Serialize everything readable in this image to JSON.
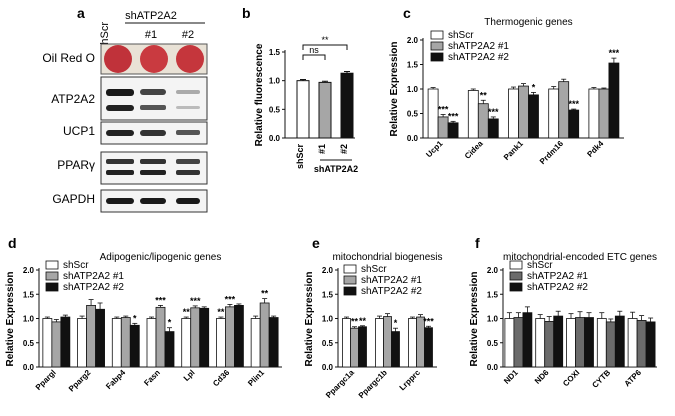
{
  "panels": {
    "a": {
      "letter": "a",
      "col_labels": [
        "shScr",
        "shATP2A2",
        "#1",
        "#2"
      ],
      "rows": [
        "Oil Red O",
        "ATP2A2",
        "UCP1",
        "PPARγ",
        "GAPDH"
      ]
    }
  },
  "chart_data": [
    {
      "panel": "b",
      "type": "bar",
      "title": "",
      "categories": [
        "shScr",
        "#1",
        "#2"
      ],
      "group_label": "shATP2A2",
      "ylabel": "Relative fluorescence",
      "ylim": [
        0,
        1.5
      ],
      "yticks": [
        "0.0",
        "0.5",
        "1.0",
        "1.5"
      ],
      "colors": [
        "#ffffff",
        "#a6a6a6",
        "#111111"
      ],
      "values": [
        1.0,
        0.97,
        1.13
      ],
      "errors": [
        0.02,
        0.02,
        0.03
      ],
      "sig_brackets": [
        {
          "from": 0,
          "to": 1,
          "label": "ns"
        },
        {
          "from": 0,
          "to": 2,
          "label": "**"
        }
      ]
    },
    {
      "panel": "c",
      "type": "bar",
      "title": "Thermogenic genes",
      "categories": [
        "Ucp1",
        "Cidea",
        "Pank1",
        "Prdm16",
        "Pdk4"
      ],
      "ylabel": "Relative Expression",
      "ylim": [
        0,
        2.0
      ],
      "yticks": [
        "0.0",
        "0.5",
        "1.0",
        "1.5",
        "2.0"
      ],
      "legend_position": "top-left",
      "series": [
        {
          "name": "shScr",
          "color": "#ffffff",
          "values": [
            1.0,
            0.97,
            1.0,
            1.0,
            1.0
          ],
          "errors": [
            0.03,
            0.03,
            0.04,
            0.05,
            0.03
          ],
          "stars": [
            "",
            "",
            "",
            "",
            ""
          ]
        },
        {
          "name": "shATP2A2 #1",
          "color": "#a6a6a6",
          "values": [
            0.43,
            0.7,
            1.06,
            1.15,
            1.0
          ],
          "errors": [
            0.05,
            0.07,
            0.05,
            0.05,
            0.02
          ],
          "stars": [
            "***",
            "**",
            "",
            "",
            ""
          ]
        },
        {
          "name": "shATP2A2 #2",
          "color": "#111111",
          "values": [
            0.31,
            0.39,
            0.88,
            0.57,
            1.53
          ],
          "errors": [
            0.03,
            0.04,
            0.05,
            0.02,
            0.1
          ],
          "stars": [
            "***",
            "***",
            "*",
            "***",
            "***"
          ]
        }
      ]
    },
    {
      "panel": "d",
      "type": "bar",
      "title": "Adipogenic/lipogenic genes",
      "categories": [
        "Ppargl",
        "Pparg2",
        "Fabp4",
        "Fasn",
        "Lpl",
        "Cd36",
        "Plin1"
      ],
      "ylabel": "Relative Expression",
      "ylim": [
        0,
        2.0
      ],
      "yticks": [
        "0.0",
        "0.5",
        "1.0",
        "1.5",
        "2.0"
      ],
      "legend_position": "top-left",
      "series": [
        {
          "name": "shScr",
          "color": "#ffffff",
          "values": [
            1.0,
            1.0,
            1.0,
            1.0,
            1.0,
            1.0,
            1.0
          ],
          "errors": [
            0.03,
            0.05,
            0.03,
            0.03,
            0.03,
            0.03,
            0.05
          ],
          "stars": [
            "",
            "",
            "",
            "",
            "**",
            "**",
            ""
          ]
        },
        {
          "name": "shATP2A2 #1",
          "color": "#a6a6a6",
          "values": [
            0.93,
            1.27,
            1.02,
            1.23,
            1.22,
            1.24,
            1.32
          ],
          "errors": [
            0.05,
            0.12,
            0.03,
            0.04,
            0.04,
            0.05,
            0.09
          ],
          "stars": [
            "",
            "",
            "",
            "***",
            "***",
            "***",
            "**"
          ]
        },
        {
          "name": "shATP2A2 #2",
          "color": "#111111",
          "values": [
            1.03,
            1.19,
            0.86,
            0.73,
            1.21,
            1.27,
            1.02
          ],
          "errors": [
            0.04,
            0.13,
            0.04,
            0.08,
            0.03,
            0.03,
            0.03
          ],
          "stars": [
            "",
            "",
            "*",
            "*",
            "",
            "",
            ""
          ]
        }
      ]
    },
    {
      "panel": "e",
      "type": "bar",
      "title": "mitochondrial biogenesis",
      "categories": [
        "Ppargc1a",
        "Ppargc1b",
        "Lrpprc"
      ],
      "ylabel": "Relative Expression",
      "ylim": [
        0,
        2.0
      ],
      "yticks": [
        "0.0",
        "0.5",
        "1.0",
        "1.5",
        "2.0"
      ],
      "legend_position": "top-left",
      "series": [
        {
          "name": "shScr",
          "color": "#ffffff",
          "values": [
            1.0,
            1.0,
            1.0
          ],
          "errors": [
            0.03,
            0.05,
            0.03
          ],
          "stars": [
            "",
            "",
            ""
          ]
        },
        {
          "name": "shATP2A2 #1",
          "color": "#a6a6a6",
          "values": [
            0.8,
            1.04,
            1.03
          ],
          "errors": [
            0.03,
            0.06,
            0.05
          ],
          "stars": [
            "**",
            "",
            ""
          ]
        },
        {
          "name": "shATP2A2 #2",
          "color": "#111111",
          "values": [
            0.83,
            0.73,
            0.81
          ],
          "errors": [
            0.02,
            0.07,
            0.03
          ],
          "stars": [
            "**",
            "*",
            "***"
          ]
        }
      ]
    },
    {
      "panel": "f",
      "type": "bar",
      "title": "mitochondrial-encoded ETC genes",
      "categories": [
        "ND1",
        "ND6",
        "COXI",
        "CYTB",
        "ATP6"
      ],
      "ylabel": "Relative Expression",
      "ylim": [
        0,
        2.0
      ],
      "yticks": [
        "0.0",
        "0.5",
        "1.0",
        "1.5",
        "2.0"
      ],
      "legend_position": "top-left",
      "series": [
        {
          "name": "shScr",
          "color": "#ffffff",
          "values": [
            1.0,
            1.0,
            1.0,
            1.0,
            1.0
          ],
          "errors": [
            0.12,
            0.08,
            0.1,
            0.12,
            0.13
          ],
          "stars": [
            "",
            "",
            "",
            "",
            ""
          ]
        },
        {
          "name": "shATP2A2 #1",
          "color": "#6b6b6b",
          "values": [
            1.02,
            0.94,
            1.02,
            0.93,
            0.96
          ],
          "errors": [
            0.1,
            0.1,
            0.12,
            0.06,
            0.1
          ],
          "stars": [
            "",
            "",
            "",
            "",
            ""
          ]
        },
        {
          "name": "shATP2A2 #2",
          "color": "#111111",
          "values": [
            1.12,
            1.05,
            1.02,
            1.05,
            0.93
          ],
          "errors": [
            0.12,
            0.1,
            0.1,
            0.1,
            0.08
          ],
          "stars": [
            "",
            "",
            "",
            "",
            ""
          ]
        }
      ]
    }
  ]
}
